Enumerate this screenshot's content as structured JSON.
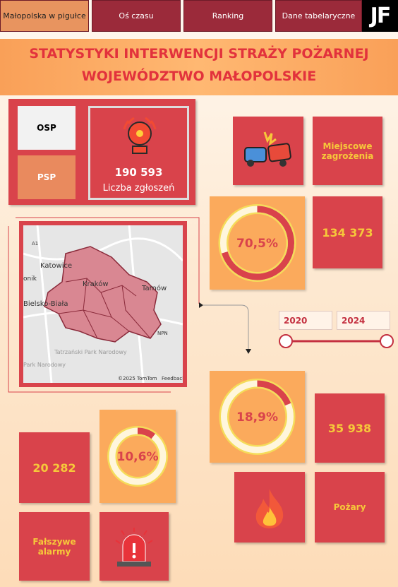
{
  "nav": {
    "tabs": [
      "Małopolska w pigułce",
      "Oś czasu",
      "Ranking",
      "Dane tabelaryczne"
    ],
    "logo": "JF"
  },
  "header": {
    "title_line1": "STATYSTYKI INTERWENCJI STRAŻY POŻARNEJ",
    "title_line2": "WOJEWÓDZTWO MAŁOPOLSKIE"
  },
  "filters": {
    "osp": "OSP",
    "psp": "PSP"
  },
  "total": {
    "value": "190 593",
    "label": "Liczba zgłoszeń"
  },
  "map": {
    "labels": [
      "A1",
      "Katowice",
      "onik",
      "Kraków",
      "Tarnów",
      "Bielsko-Biała",
      "NPN",
      "Tatrzański Park Narodowy",
      "Park Narodowy",
      "©2025 TomTom",
      "Feedback"
    ]
  },
  "date_range": {
    "start": "2020",
    "end": "2024"
  },
  "categories": [
    {
      "name": "Miejscowe zagrożenia",
      "count": "134 373",
      "share": {
        "value": 70.5,
        "label": "70,5%"
      }
    },
    {
      "name": "Pożary",
      "count": "35 938",
      "share": {
        "value": 18.9,
        "label": "18,9%"
      }
    },
    {
      "name": "Fałszywe alarmy",
      "count": "20 282",
      "share": {
        "value": 10.6,
        "label": "10,6%"
      }
    }
  ]
}
